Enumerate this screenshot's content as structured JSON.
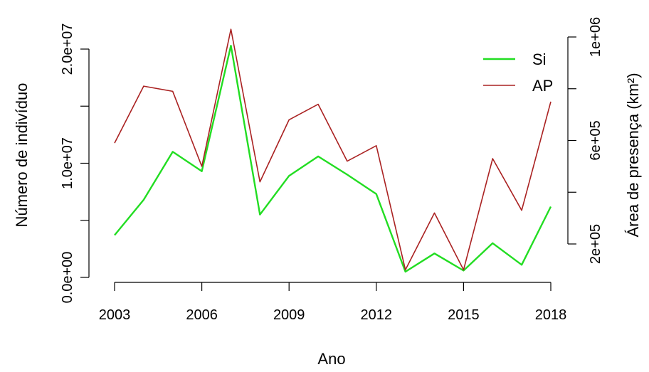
{
  "chart_data": {
    "type": "line",
    "title": "",
    "xlabel": "Ano",
    "ylabel_left": "Número de indivíduo",
    "ylabel_right": "Área de presença (km²)",
    "x": [
      2003,
      2004,
      2005,
      2006,
      2007,
      2008,
      2009,
      2010,
      2011,
      2012,
      2013,
      2014,
      2015,
      2016,
      2017,
      2018
    ],
    "x_ticks": [
      2003,
      2006,
      2009,
      2012,
      2015,
      2018
    ],
    "x_tick_labels": [
      "2003",
      "2006",
      "2009",
      "2012",
      "2015",
      "2018"
    ],
    "xlim": [
      2003,
      2018
    ],
    "left_axis": {
      "ticks": [
        0,
        5000000,
        10000000,
        15000000,
        20000000
      ],
      "tick_labels": [
        "0.0e+00",
        "",
        "1.0e+07",
        "",
        "2.0e+07"
      ],
      "ylim": [
        0,
        20000000
      ]
    },
    "right_axis": {
      "ticks": [
        200000,
        400000,
        600000,
        800000,
        1000000
      ],
      "tick_labels": [
        "2e+05",
        "",
        "6e+05",
        "",
        "1e+06"
      ],
      "ylim": [
        200000,
        1000000
      ]
    },
    "series": [
      {
        "name": "Si",
        "axis": "left",
        "color": "#22dd22",
        "values": [
          3700000,
          6800000,
          11000000,
          9300000,
          20300000,
          5500000,
          8900000,
          10600000,
          9000000,
          7300000,
          500000,
          2100000,
          600000,
          3000000,
          1100000,
          6200000
        ]
      },
      {
        "name": "AP",
        "axis": "right",
        "color": "#aa2222",
        "values": [
          590000,
          810000,
          790000,
          500000,
          1030000,
          440000,
          680000,
          740000,
          520000,
          580000,
          100000,
          320000,
          100000,
          530000,
          330000,
          750000
        ]
      }
    ],
    "legend": {
      "position": "top-right",
      "entries": [
        "Si",
        "AP"
      ]
    },
    "grid": false
  }
}
